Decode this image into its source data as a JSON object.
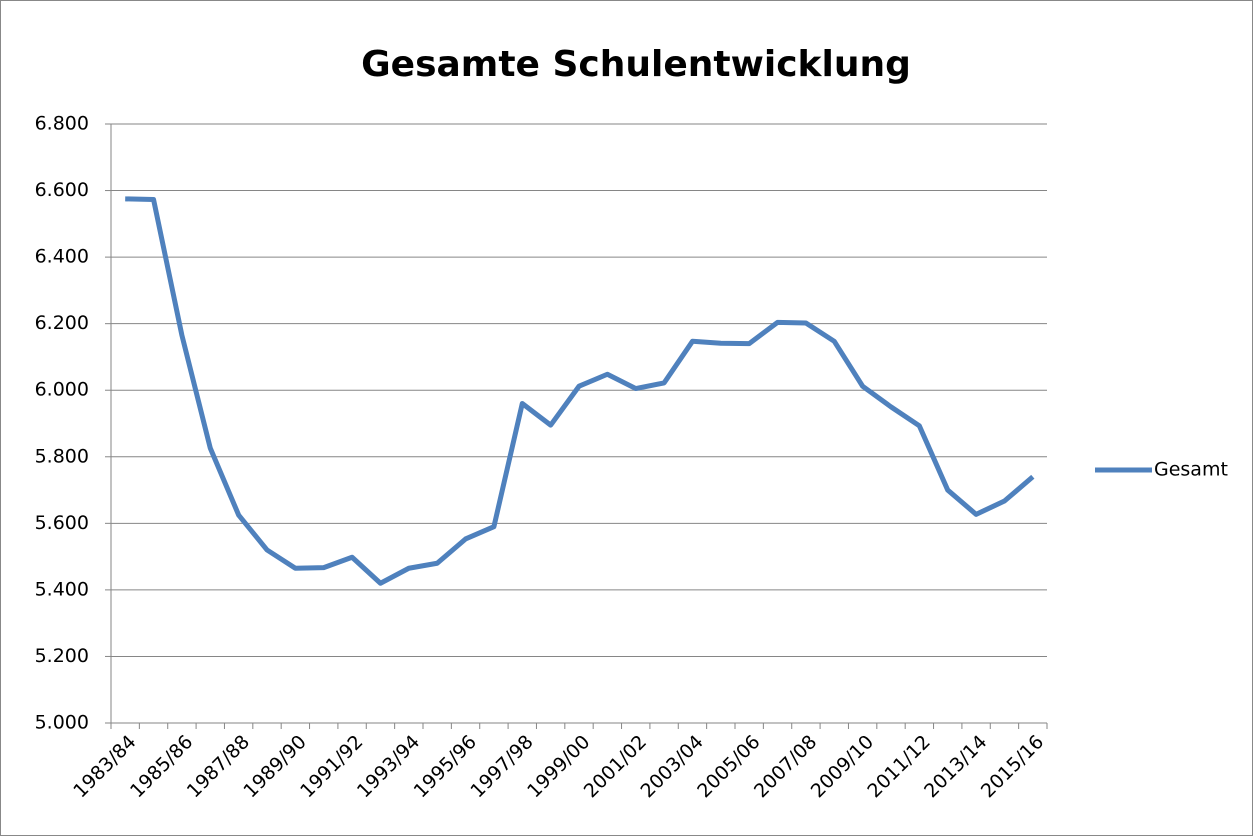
{
  "chart_data": {
    "type": "line",
    "title": "Gesamte Schulentwicklung",
    "categories": [
      "1983/84",
      null,
      "1985/86",
      null,
      "1987/88",
      null,
      "1989/90",
      null,
      "1991/92",
      null,
      "1993/94",
      null,
      "1995/96",
      null,
      "1997/98",
      null,
      "1999/00",
      null,
      "2001/02",
      null,
      "2003/04",
      null,
      "2005/06",
      null,
      "2007/08",
      null,
      "2009/10",
      null,
      "2011/12",
      null,
      "2013/14",
      null,
      "2015/16"
    ],
    "series": [
      {
        "name": "Gesamt",
        "color": "#4f81bd",
        "values": [
          6575,
          6573,
          6165,
          5826,
          5625,
          5520,
          5465,
          5467,
          5498,
          5420,
          5465,
          5480,
          5553,
          5590,
          5960,
          5895,
          6012,
          6048,
          6005,
          6022,
          6147,
          6141,
          6140,
          6204,
          6202,
          6147,
          6012,
          5950,
          5893,
          5700,
          5627,
          5667,
          5740
        ]
      }
    ],
    "ylim": [
      5000,
      6800
    ],
    "yticks": [
      {
        "value": 5000,
        "label": "5.000"
      },
      {
        "value": 5200,
        "label": "5.200"
      },
      {
        "value": 5400,
        "label": "5.400"
      },
      {
        "value": 5600,
        "label": "5.600"
      },
      {
        "value": 5800,
        "label": "5.800"
      },
      {
        "value": 6000,
        "label": "6.000"
      },
      {
        "value": 6200,
        "label": "6.200"
      },
      {
        "value": 6400,
        "label": "6.400"
      },
      {
        "value": 6600,
        "label": "6.600"
      },
      {
        "value": 6800,
        "label": "6.800"
      }
    ],
    "grid": true,
    "legend": "right"
  }
}
